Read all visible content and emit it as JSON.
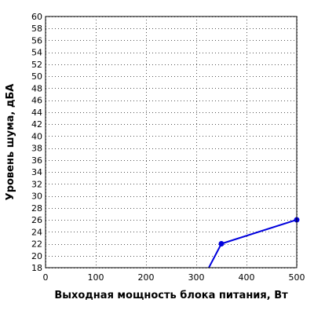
{
  "chart_data": {
    "type": "line",
    "xlabel": "Выходная мощность блока питания, Вт",
    "ylabel": "Уровень шума, дБА",
    "xlim": [
      0,
      500
    ],
    "ylim": [
      18,
      60
    ],
    "x_ticks": [
      0,
      100,
      200,
      300,
      400,
      500
    ],
    "y_ticks": [
      18,
      20,
      22,
      24,
      26,
      28,
      30,
      32,
      34,
      36,
      38,
      40,
      42,
      44,
      46,
      48,
      50,
      52,
      54,
      56,
      58,
      60
    ],
    "grid": true,
    "line_color": "#0000dd",
    "series": [
      {
        "x": [
          300,
          350,
          500
        ],
        "y": [
          14,
          22,
          26
        ],
        "markers": [
          false,
          true,
          true
        ]
      }
    ]
  }
}
